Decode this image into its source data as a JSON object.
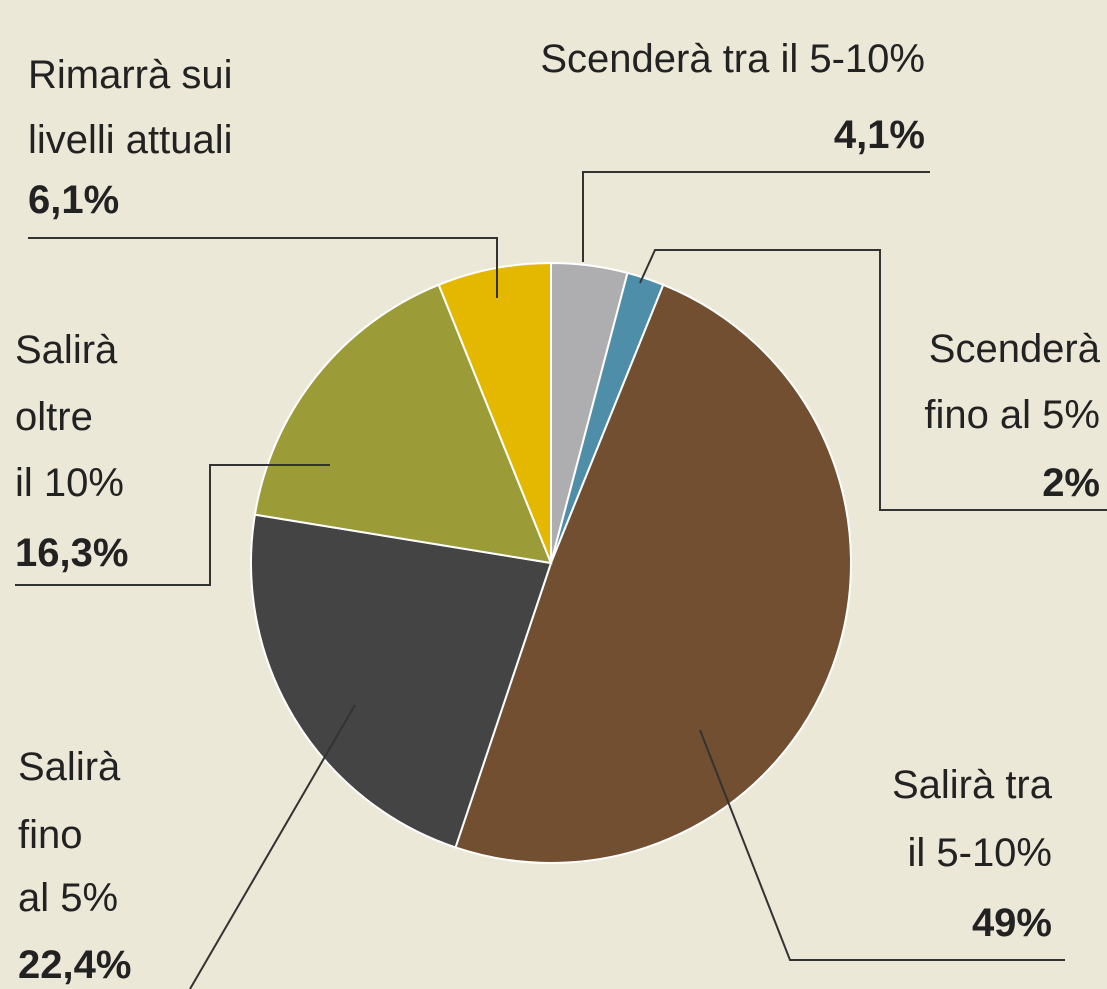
{
  "chart_data": {
    "type": "pie",
    "categories": [
      [
        "Scenderà tra il 5-10%"
      ],
      [
        "Scenderà",
        "fino al 5%"
      ],
      [
        "Salirà tra",
        "il 5-10%"
      ],
      [
        "Salirà",
        "fino",
        "al 5%"
      ],
      [
        "Salirà",
        "oltre",
        "il 10%"
      ],
      [
        "Rimarrà sui",
        "livelli attuali"
      ]
    ],
    "values": [
      4.1,
      2,
      49,
      22.4,
      16.3,
      6.1
    ],
    "value_labels": [
      "4,1%",
      "2%",
      "49%",
      "22,4%",
      "16,3%",
      "6,1%"
    ],
    "colors": [
      "#aeaeb1",
      "#4f8ea8",
      "#714f30",
      "#444444",
      "#9b9b37",
      "#e5b800"
    ]
  }
}
